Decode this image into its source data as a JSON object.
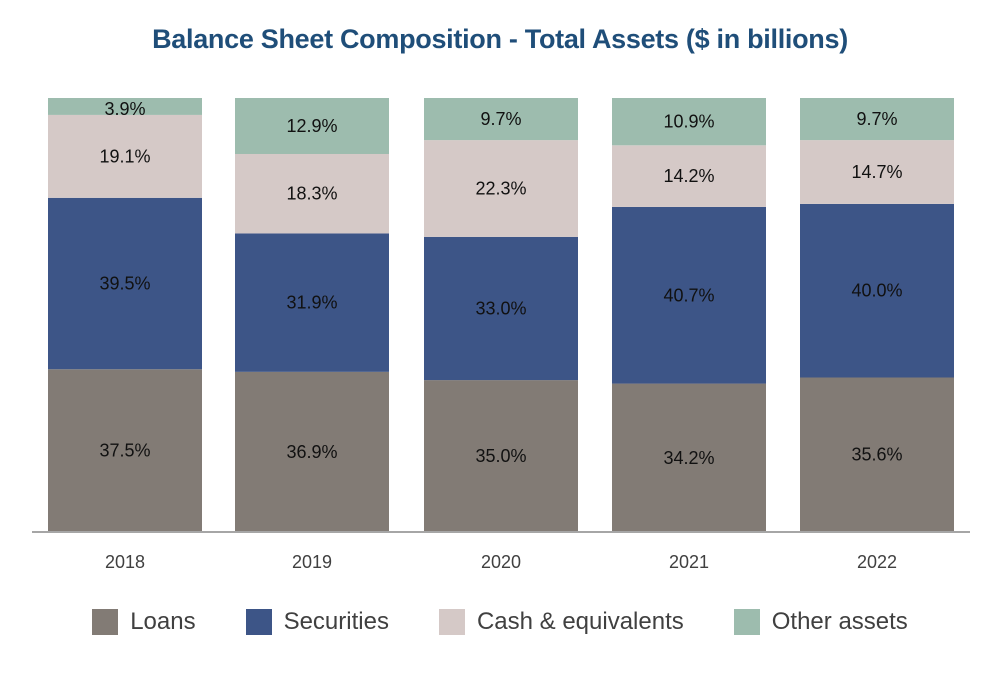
{
  "chart_data": {
    "type": "bar",
    "stacked": true,
    "title": "Balance Sheet Composition - Total Assets ($ in billions)",
    "xlabel": "",
    "ylabel": "",
    "ylim": [
      0,
      100
    ],
    "categories": [
      "2018",
      "2019",
      "2020",
      "2021",
      "2022"
    ],
    "series": [
      {
        "name": "Loans",
        "color": "#827b75",
        "values": [
          37.5,
          36.9,
          35.0,
          34.2,
          35.6
        ]
      },
      {
        "name": "Securities",
        "color": "#3d5587",
        "values": [
          39.5,
          31.9,
          33.0,
          40.7,
          40.0
        ]
      },
      {
        "name": "Cash & equivalents",
        "color": "#d5c9c7",
        "values": [
          19.1,
          18.3,
          22.3,
          14.2,
          14.7
        ]
      },
      {
        "name": "Other assets",
        "color": "#9dbcae",
        "values": [
          3.9,
          12.9,
          9.7,
          10.9,
          9.7
        ]
      }
    ],
    "legend_position": "bottom"
  }
}
